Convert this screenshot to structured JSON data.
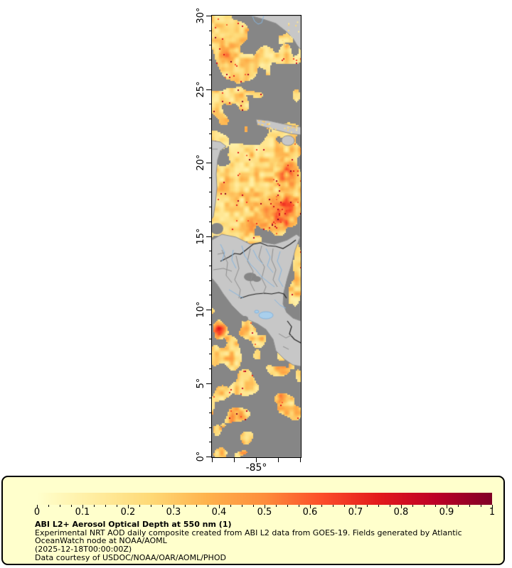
{
  "chart_data": {
    "type": "heatmap",
    "title": "ABI L2+ Aerosol Optical Depth at 550 nm (1)",
    "variable": "Aerosol Optical Depth at 550 nm",
    "satellite": "GOES-19",
    "timestamp": "2025-12-18T00:00:00Z",
    "colormap": "YlOrRd",
    "colorbar_range": [
      0,
      1
    ],
    "colorbar_tick_values": [
      0,
      0.1,
      0.2,
      0.3,
      0.4,
      0.5,
      0.6,
      0.7,
      0.8,
      0.9,
      1
    ],
    "y_axis": {
      "tick_labels": [
        "0°",
        "5°",
        "10°",
        "15°",
        "20°",
        "25°",
        "30°"
      ],
      "range_deg": [
        0,
        30
      ]
    },
    "x_axis": {
      "center_label": "-85°",
      "ticks_shown": 5
    },
    "legend_note": "gray = no data / cloud, light gray = land"
  },
  "map": {
    "lat_min": 0,
    "lat_max": 30,
    "lat_major_step": 5,
    "lat_labels": [
      "0°",
      "5°",
      "10°",
      "15°",
      "20°",
      "25°",
      "30°"
    ],
    "lon_label": "-85°",
    "lon_tick_count": 5,
    "colors": {
      "no_data_gray": "#868686",
      "land_gray": "#C7C7C7",
      "coastline": "#8f8f8f",
      "country_border": "#222222",
      "admin_border": "#8e8e8e",
      "river_blue": "#85B5DF",
      "lake_blue": "#A9CFEC"
    }
  },
  "legend": {
    "background": "#FFFFCC",
    "palette": [
      "#FFFFCC",
      "#FFEDA0",
      "#FED976",
      "#FEB24C",
      "#FD8D3C",
      "#FC4E2A",
      "#E31A1C",
      "#BD0026",
      "#800026"
    ],
    "tick_labels": [
      "0",
      "0.1",
      "0.2",
      "0.3",
      "0.4",
      "0.5",
      "0.6",
      "0.7",
      "0.8",
      "0.9",
      "1"
    ],
    "title": "ABI L2+ Aerosol Optical Depth at 550 nm (1)",
    "lines": [
      "Experimental NRT AOD daily composite created from ABI L2 data from GOES-19. Fields generated by Atlantic",
      "OceanWatch node at NOAA/AOML",
      "(2025-12-18T00:00:00Z)",
      "Data courtesy of USDOC/NOAA/OAR/AOML/PHOD"
    ]
  }
}
